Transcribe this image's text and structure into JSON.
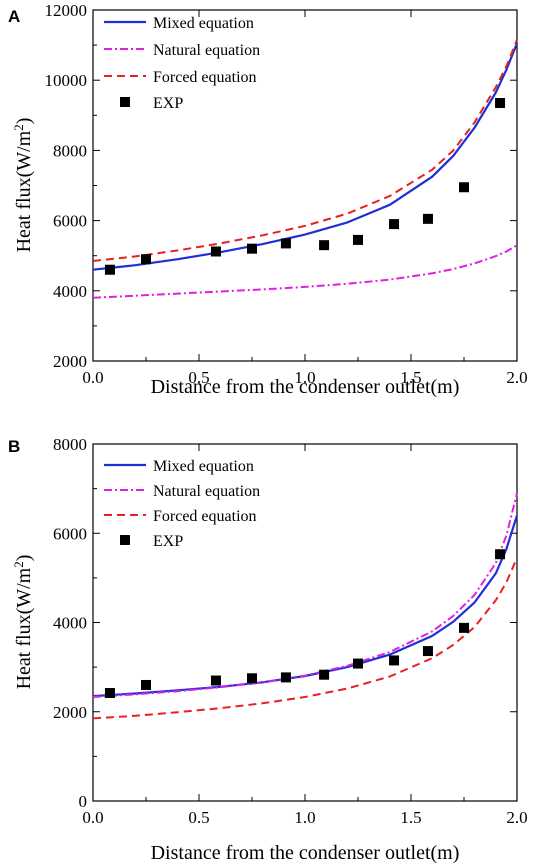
{
  "chart_data": [
    {
      "panel_label": "A",
      "type": "line",
      "xlabel": "Distance from the condenser outlet(m)",
      "ylabel": "Heat flux(W/m",
      "ylabel_sup": "2",
      "ylabel_close": ")",
      "xlim": [
        0.0,
        2.0
      ],
      "ylim": [
        2000,
        12000
      ],
      "xticks": [
        0.0,
        0.5,
        1.0,
        1.5,
        2.0
      ],
      "xtick_labels": [
        "0.0",
        "0.5",
        "1.0",
        "1.5",
        "2.0"
      ],
      "yticks": [
        2000,
        4000,
        6000,
        8000,
        10000,
        12000
      ],
      "ytick_labels": [
        "2000",
        "4000",
        "6000",
        "8000",
        "10000",
        "12000"
      ],
      "legend_position": "top-left",
      "series": [
        {
          "name": "Mixed equation",
          "style": "solid",
          "color": "#1f2fd6",
          "x": [
            0.0,
            0.2,
            0.4,
            0.6,
            0.8,
            1.0,
            1.2,
            1.4,
            1.6,
            1.7,
            1.8,
            1.9,
            1.95,
            2.0
          ],
          "y": [
            4600,
            4730,
            4900,
            5100,
            5330,
            5600,
            5950,
            6450,
            7250,
            7850,
            8650,
            9650,
            10300,
            11050
          ]
        },
        {
          "name": "Natural equation",
          "style": "dashdot",
          "color": "#e020e0",
          "x": [
            0.0,
            0.2,
            0.4,
            0.6,
            0.8,
            1.0,
            1.2,
            1.4,
            1.6,
            1.7,
            1.8,
            1.9,
            1.95,
            2.0
          ],
          "y": [
            3800,
            3860,
            3920,
            3980,
            4040,
            4110,
            4200,
            4320,
            4500,
            4620,
            4780,
            4990,
            5120,
            5300
          ]
        },
        {
          "name": "Forced equation",
          "style": "dashed",
          "color": "#e82020",
          "x": [
            0.0,
            0.2,
            0.4,
            0.6,
            0.8,
            1.0,
            1.2,
            1.4,
            1.6,
            1.7,
            1.8,
            1.9,
            1.95,
            2.0
          ],
          "y": [
            4850,
            4980,
            5150,
            5350,
            5580,
            5850,
            6200,
            6700,
            7450,
            8000,
            8800,
            9800,
            10400,
            11150
          ]
        },
        {
          "name": "EXP",
          "style": "marker-square",
          "color": "#000000",
          "x": [
            0.08,
            0.25,
            0.58,
            0.75,
            0.91,
            1.09,
            1.25,
            1.42,
            1.58,
            1.75,
            1.92
          ],
          "y": [
            4600,
            4900,
            5120,
            5200,
            5350,
            5300,
            5450,
            5900,
            6050,
            6950,
            9350
          ]
        }
      ]
    },
    {
      "panel_label": "B",
      "type": "line",
      "xlabel": "Distance from the condenser outlet(m)",
      "ylabel": "Heat flux(W/m",
      "ylabel_sup": "2",
      "ylabel_close": ")",
      "xlim": [
        0.0,
        2.0
      ],
      "ylim": [
        0,
        8000
      ],
      "xticks": [
        0.0,
        0.5,
        1.0,
        1.5,
        2.0
      ],
      "xtick_labels": [
        "0.0",
        "0.5",
        "1.0",
        "1.5",
        "2.0"
      ],
      "yticks": [
        0,
        2000,
        4000,
        6000,
        8000
      ],
      "ytick_labels": [
        "0",
        "2000",
        "4000",
        "6000",
        "8000"
      ],
      "legend_position": "top-left",
      "series": [
        {
          "name": "Mixed equation",
          "style": "solid",
          "color": "#1f2fd6",
          "x": [
            0.0,
            0.2,
            0.4,
            0.6,
            0.8,
            1.0,
            1.2,
            1.4,
            1.6,
            1.7,
            1.8,
            1.9,
            1.95,
            2.0
          ],
          "y": [
            2350,
            2410,
            2480,
            2560,
            2660,
            2800,
            3000,
            3280,
            3700,
            4020,
            4450,
            5100,
            5650,
            6400
          ]
        },
        {
          "name": "Natural equation",
          "style": "dashdot",
          "color": "#e020e0",
          "x": [
            0.0,
            0.2,
            0.4,
            0.6,
            0.8,
            1.0,
            1.2,
            1.4,
            1.6,
            1.7,
            1.8,
            1.9,
            1.95,
            2.0
          ],
          "y": [
            2330,
            2390,
            2460,
            2550,
            2660,
            2810,
            3030,
            3340,
            3800,
            4150,
            4620,
            5330,
            5950,
            6900
          ]
        },
        {
          "name": "Forced equation",
          "style": "dashed",
          "color": "#e82020",
          "x": [
            0.0,
            0.2,
            0.4,
            0.6,
            0.8,
            1.0,
            1.2,
            1.4,
            1.6,
            1.7,
            1.8,
            1.9,
            1.95,
            2.0
          ],
          "y": [
            1850,
            1910,
            1990,
            2080,
            2190,
            2330,
            2520,
            2790,
            3200,
            3500,
            3900,
            4500,
            4900,
            5450
          ]
        },
        {
          "name": "EXP",
          "style": "marker-square",
          "color": "#000000",
          "x": [
            0.08,
            0.25,
            0.58,
            0.75,
            0.91,
            1.09,
            1.25,
            1.42,
            1.58,
            1.75,
            1.92
          ],
          "y": [
            2420,
            2600,
            2700,
            2750,
            2770,
            2830,
            3080,
            3150,
            3360,
            3880,
            5530
          ]
        }
      ]
    }
  ]
}
